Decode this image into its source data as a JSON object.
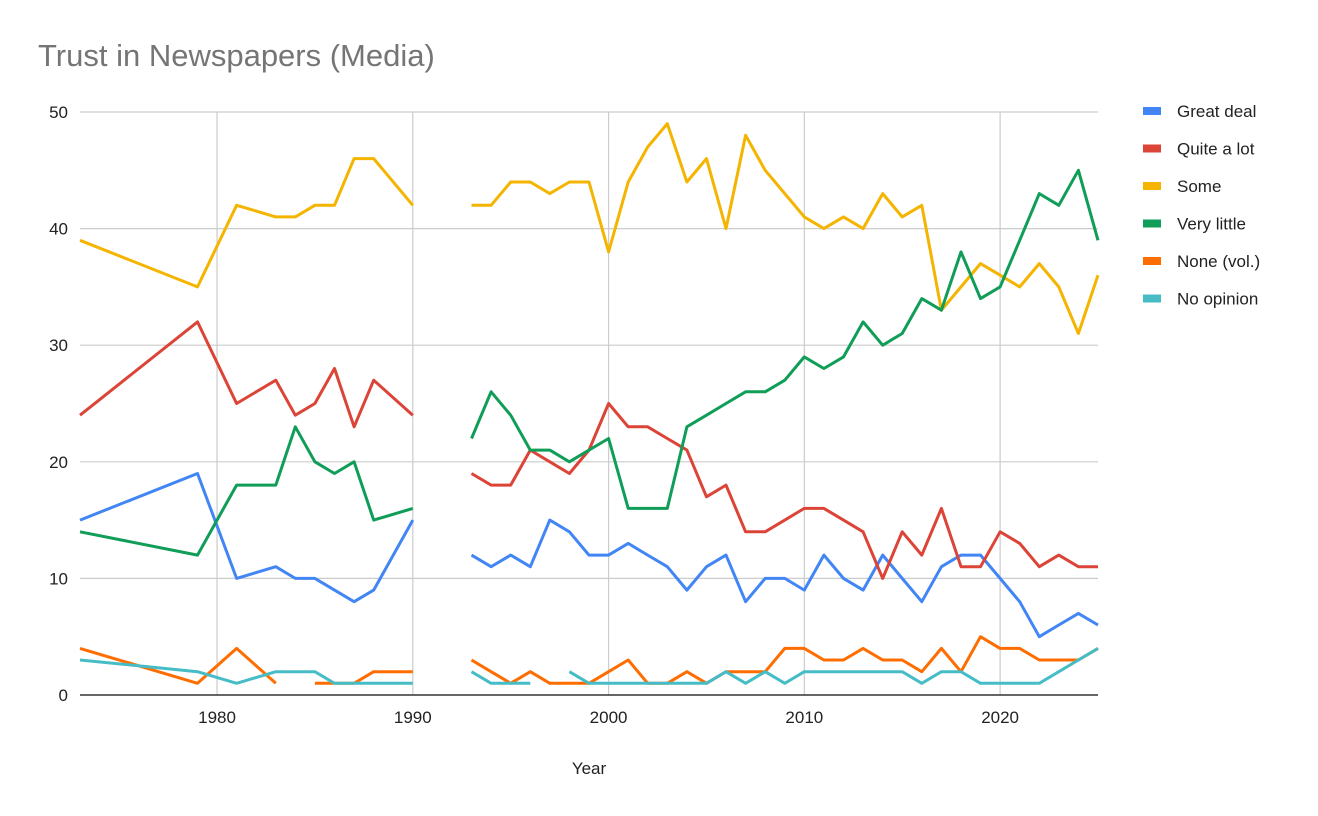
{
  "chart_data": {
    "type": "line",
    "title": "Trust in Newspapers (Media)",
    "xlabel": "Year",
    "ylabel": "",
    "xlim": [
      1973,
      2025
    ],
    "ylim": [
      0,
      50
    ],
    "x_ticks": [
      1980,
      1990,
      2000,
      2010,
      2020
    ],
    "y_ticks": [
      0,
      10,
      20,
      30,
      40,
      50
    ],
    "grid": true,
    "legend_position": "right",
    "series": [
      {
        "name": "Great deal",
        "color": "#4285F4",
        "points": [
          [
            1973,
            15
          ],
          [
            1979,
            19
          ],
          [
            1981,
            10
          ],
          [
            1983,
            11
          ],
          [
            1984,
            10
          ],
          [
            1985,
            10
          ],
          [
            1986,
            9
          ],
          [
            1987,
            8
          ],
          [
            1988,
            9
          ],
          [
            1990,
            15
          ],
          null,
          [
            1993,
            12
          ],
          [
            1994,
            11
          ],
          [
            1995,
            12
          ],
          [
            1996,
            11
          ],
          [
            1997,
            15
          ],
          [
            1998,
            14
          ],
          [
            1999,
            12
          ],
          [
            2000,
            12
          ],
          [
            2001,
            13
          ],
          [
            2002,
            12
          ],
          [
            2003,
            11
          ],
          [
            2004,
            9
          ],
          [
            2005,
            11
          ],
          [
            2006,
            12
          ],
          [
            2007,
            8
          ],
          [
            2008,
            10
          ],
          [
            2009,
            10
          ],
          [
            2010,
            9
          ],
          [
            2011,
            12
          ],
          [
            2012,
            10
          ],
          [
            2013,
            9
          ],
          [
            2014,
            12
          ],
          [
            2015,
            10
          ],
          [
            2016,
            8
          ],
          [
            2017,
            11
          ],
          [
            2018,
            12
          ],
          [
            2019,
            12
          ],
          [
            2020,
            10
          ],
          [
            2021,
            8
          ],
          [
            2022,
            5
          ],
          [
            2023,
            6
          ],
          [
            2024,
            7
          ],
          [
            2025,
            6
          ]
        ]
      },
      {
        "name": "Quite a lot",
        "color": "#DB4437",
        "points": [
          [
            1973,
            24
          ],
          [
            1979,
            32
          ],
          [
            1981,
            25
          ],
          [
            1983,
            27
          ],
          [
            1984,
            24
          ],
          [
            1985,
            25
          ],
          [
            1986,
            28
          ],
          [
            1987,
            23
          ],
          [
            1988,
            27
          ],
          [
            1990,
            24
          ],
          null,
          [
            1993,
            19
          ],
          [
            1994,
            18
          ],
          [
            1995,
            18
          ],
          [
            1996,
            21
          ],
          [
            1997,
            20
          ],
          [
            1998,
            19
          ],
          [
            1999,
            21
          ],
          [
            2000,
            25
          ],
          [
            2001,
            23
          ],
          [
            2002,
            23
          ],
          [
            2003,
            22
          ],
          [
            2004,
            21
          ],
          [
            2005,
            17
          ],
          [
            2006,
            18
          ],
          [
            2007,
            14
          ],
          [
            2008,
            14
          ],
          [
            2009,
            15
          ],
          [
            2010,
            16
          ],
          [
            2011,
            16
          ],
          [
            2012,
            15
          ],
          [
            2013,
            14
          ],
          [
            2014,
            10
          ],
          [
            2015,
            14
          ],
          [
            2016,
            12
          ],
          [
            2017,
            16
          ],
          [
            2018,
            11
          ],
          [
            2019,
            11
          ],
          [
            2020,
            14
          ],
          [
            2021,
            13
          ],
          [
            2022,
            11
          ],
          [
            2023,
            12
          ],
          [
            2024,
            11
          ],
          [
            2025,
            11
          ]
        ]
      },
      {
        "name": "Some",
        "color": "#F4B400",
        "points": [
          [
            1973,
            39
          ],
          [
            1979,
            35
          ],
          [
            1981,
            42
          ],
          [
            1983,
            41
          ],
          [
            1984,
            41
          ],
          [
            1985,
            42
          ],
          [
            1986,
            42
          ],
          [
            1987,
            46
          ],
          [
            1988,
            46
          ],
          [
            1990,
            42
          ],
          null,
          [
            1993,
            42
          ],
          [
            1994,
            42
          ],
          [
            1995,
            44
          ],
          [
            1996,
            44
          ],
          [
            1997,
            43
          ],
          [
            1998,
            44
          ],
          [
            1999,
            44
          ],
          [
            2000,
            38
          ],
          [
            2001,
            44
          ],
          [
            2002,
            47
          ],
          [
            2003,
            49
          ],
          [
            2004,
            44
          ],
          [
            2005,
            46
          ],
          [
            2006,
            40
          ],
          [
            2007,
            48
          ],
          [
            2008,
            45
          ],
          [
            2009,
            43
          ],
          [
            2010,
            41
          ],
          [
            2011,
            40
          ],
          [
            2012,
            41
          ],
          [
            2013,
            40
          ],
          [
            2014,
            43
          ],
          [
            2015,
            41
          ],
          [
            2016,
            42
          ],
          [
            2017,
            33
          ],
          [
            2018,
            35
          ],
          [
            2019,
            37
          ],
          [
            2020,
            36
          ],
          [
            2021,
            35
          ],
          [
            2022,
            37
          ],
          [
            2023,
            35
          ],
          [
            2024,
            31
          ],
          [
            2025,
            36
          ]
        ]
      },
      {
        "name": "Very little",
        "color": "#0F9D58",
        "points": [
          [
            1973,
            14
          ],
          [
            1979,
            12
          ],
          [
            1981,
            18
          ],
          [
            1983,
            18
          ],
          [
            1984,
            23
          ],
          [
            1985,
            20
          ],
          [
            1986,
            19
          ],
          [
            1987,
            20
          ],
          [
            1988,
            15
          ],
          [
            1990,
            16
          ],
          null,
          [
            1993,
            22
          ],
          [
            1994,
            26
          ],
          [
            1995,
            24
          ],
          [
            1996,
            21
          ],
          [
            1997,
            21
          ],
          [
            1998,
            20
          ],
          [
            1999,
            21
          ],
          [
            2000,
            22
          ],
          [
            2001,
            16
          ],
          [
            2002,
            16
          ],
          [
            2003,
            16
          ],
          [
            2004,
            23
          ],
          [
            2005,
            24
          ],
          [
            2006,
            25
          ],
          [
            2007,
            26
          ],
          [
            2008,
            26
          ],
          [
            2009,
            27
          ],
          [
            2010,
            29
          ],
          [
            2011,
            28
          ],
          [
            2012,
            29
          ],
          [
            2013,
            32
          ],
          [
            2014,
            30
          ],
          [
            2015,
            31
          ],
          [
            2016,
            34
          ],
          [
            2017,
            33
          ],
          [
            2018,
            38
          ],
          [
            2019,
            34
          ],
          [
            2020,
            35
          ],
          [
            2021,
            39
          ],
          [
            2022,
            43
          ],
          [
            2023,
            42
          ],
          [
            2024,
            45
          ],
          [
            2025,
            39
          ]
        ]
      },
      {
        "name": "None (vol.)",
        "color": "#FF6D01",
        "points": [
          [
            1973,
            4
          ],
          [
            1979,
            1
          ],
          [
            1981,
            4
          ],
          [
            1983,
            1
          ],
          null,
          [
            1985,
            1
          ],
          [
            1986,
            1
          ],
          [
            1987,
            1
          ],
          [
            1988,
            2
          ],
          [
            1990,
            2
          ],
          null,
          [
            1993,
            3
          ],
          [
            1994,
            2
          ],
          [
            1995,
            1
          ],
          [
            1996,
            2
          ],
          [
            1997,
            1
          ],
          [
            1998,
            1
          ],
          [
            1999,
            1
          ],
          [
            2000,
            2
          ],
          [
            2001,
            3
          ],
          [
            2002,
            1
          ],
          [
            2003,
            1
          ],
          [
            2004,
            2
          ],
          [
            2005,
            1
          ],
          [
            2006,
            2
          ],
          [
            2007,
            2
          ],
          [
            2008,
            2
          ],
          [
            2009,
            4
          ],
          [
            2010,
            4
          ],
          [
            2011,
            3
          ],
          [
            2012,
            3
          ],
          [
            2013,
            4
          ],
          [
            2014,
            3
          ],
          [
            2015,
            3
          ],
          [
            2016,
            2
          ],
          [
            2017,
            4
          ],
          [
            2018,
            2
          ],
          [
            2019,
            5
          ],
          [
            2020,
            4
          ],
          [
            2021,
            4
          ],
          [
            2022,
            3
          ],
          [
            2023,
            3
          ],
          [
            2024,
            3
          ],
          [
            2025,
            4
          ]
        ]
      },
      {
        "name": "No opinion",
        "color": "#46BDC6",
        "points": [
          [
            1973,
            3
          ],
          [
            1979,
            2
          ],
          [
            1981,
            1
          ],
          [
            1983,
            2
          ],
          [
            1984,
            2
          ],
          [
            1985,
            2
          ],
          [
            1986,
            1
          ],
          [
            1987,
            1
          ],
          [
            1988,
            1
          ],
          [
            1990,
            1
          ],
          null,
          [
            1993,
            2
          ],
          [
            1994,
            1
          ],
          [
            1995,
            1
          ],
          [
            1996,
            1
          ],
          null,
          [
            1998,
            2
          ],
          [
            1999,
            1
          ],
          [
            2000,
            1
          ],
          [
            2001,
            1
          ],
          [
            2002,
            1
          ],
          [
            2003,
            1
          ],
          [
            2004,
            1
          ],
          [
            2005,
            1
          ],
          [
            2006,
            2
          ],
          [
            2007,
            1
          ],
          [
            2008,
            2
          ],
          [
            2009,
            1
          ],
          [
            2010,
            2
          ],
          [
            2011,
            2
          ],
          [
            2012,
            2
          ],
          [
            2013,
            2
          ],
          [
            2014,
            2
          ],
          [
            2015,
            2
          ],
          [
            2016,
            1
          ],
          [
            2017,
            2
          ],
          [
            2018,
            2
          ],
          [
            2019,
            1
          ],
          [
            2020,
            1
          ],
          [
            2021,
            1
          ],
          [
            2022,
            1
          ],
          [
            2023,
            2
          ],
          [
            2024,
            3
          ],
          [
            2025,
            4
          ]
        ]
      }
    ]
  }
}
